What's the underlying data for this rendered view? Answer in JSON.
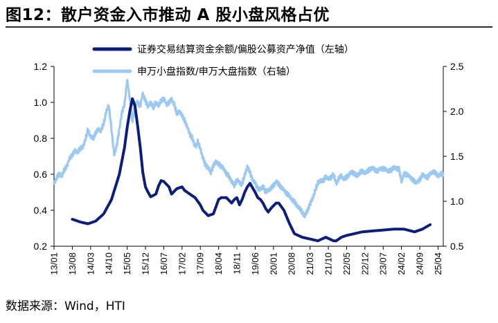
{
  "figure": {
    "title": "图12：散户资金入市推动 A 股小盘风格占优",
    "source": "数据来源：Wind，HTI"
  },
  "chart_data": {
    "type": "line",
    "x_ticks": [
      "13/01",
      "13/08",
      "14/03",
      "14/10",
      "15/05",
      "15/12",
      "16/07",
      "17/02",
      "17/09",
      "18/04",
      "18/11",
      "19/06",
      "20/01",
      "20/08",
      "21/03",
      "21/10",
      "22/05",
      "22/12",
      "23/07",
      "24/02",
      "24/09",
      "25/04"
    ],
    "x_range": [
      "2013-01",
      "2025-06"
    ],
    "left_axis": {
      "ticks": [
        "1.2",
        "1.0",
        "0.8",
        "0.6",
        "0.4",
        "0.2"
      ],
      "ylim": [
        0.2,
        1.2
      ]
    },
    "right_axis": {
      "ticks": [
        "2.5",
        "2.0",
        "1.5",
        "1.0",
        "0.5"
      ],
      "ylim": [
        0.5,
        2.5
      ]
    },
    "legend_position": "top",
    "grid": false,
    "series": [
      {
        "name": "证券交易结算资金余额/偏股公募资产净值（左轴）",
        "axis": "left",
        "color": "#0c1e7a",
        "points": [
          [
            "2013-08",
            0.35
          ],
          [
            "2013-11",
            0.335
          ],
          [
            "2014-02",
            0.325
          ],
          [
            "2014-05",
            0.34
          ],
          [
            "2014-08",
            0.38
          ],
          [
            "2014-11",
            0.46
          ],
          [
            "2015-02",
            0.6
          ],
          [
            "2015-04",
            0.75
          ],
          [
            "2015-05",
            0.86
          ],
          [
            "2015-06",
            0.95
          ],
          [
            "2015-07",
            1.02
          ],
          [
            "2015-08",
            0.98
          ],
          [
            "2015-09",
            0.87
          ],
          [
            "2015-10",
            0.75
          ],
          [
            "2015-11",
            0.61
          ],
          [
            "2015-12",
            0.53
          ],
          [
            "2016-01",
            0.5
          ],
          [
            "2016-02",
            0.475
          ],
          [
            "2016-04",
            0.49
          ],
          [
            "2016-05",
            0.535
          ],
          [
            "2016-06",
            0.565
          ],
          [
            "2016-07",
            0.56
          ],
          [
            "2016-09",
            0.53
          ],
          [
            "2016-10",
            0.49
          ],
          [
            "2016-12",
            0.52
          ],
          [
            "2017-02",
            0.53
          ],
          [
            "2017-03",
            0.51
          ],
          [
            "2017-05",
            0.49
          ],
          [
            "2017-07",
            0.47
          ],
          [
            "2017-09",
            0.43
          ],
          [
            "2017-10",
            0.4
          ],
          [
            "2017-12",
            0.37
          ],
          [
            "2018-02",
            0.38
          ],
          [
            "2018-04",
            0.46
          ],
          [
            "2018-05",
            0.47
          ],
          [
            "2018-07",
            0.47
          ],
          [
            "2018-09",
            0.44
          ],
          [
            "2018-10",
            0.46
          ],
          [
            "2018-11",
            0.47
          ],
          [
            "2018-12",
            0.43
          ],
          [
            "2019-01",
            0.46
          ],
          [
            "2019-02",
            0.5
          ],
          [
            "2019-03",
            0.53
          ],
          [
            "2019-04",
            0.55
          ],
          [
            "2019-06",
            0.5
          ],
          [
            "2019-07",
            0.47
          ],
          [
            "2019-08",
            0.46
          ],
          [
            "2019-09",
            0.44
          ],
          [
            "2019-10",
            0.41
          ],
          [
            "2019-11",
            0.39
          ],
          [
            "2019-12",
            0.41
          ],
          [
            "2020-02",
            0.44
          ],
          [
            "2020-03",
            0.44
          ],
          [
            "2020-05",
            0.4
          ],
          [
            "2020-07",
            0.33
          ],
          [
            "2020-09",
            0.27
          ],
          [
            "2020-12",
            0.25
          ],
          [
            "2021-03",
            0.24
          ],
          [
            "2021-06",
            0.23
          ],
          [
            "2021-09",
            0.25
          ],
          [
            "2021-12",
            0.23
          ],
          [
            "2022-01",
            0.23
          ],
          [
            "2022-03",
            0.25
          ],
          [
            "2022-05",
            0.26
          ],
          [
            "2022-08",
            0.27
          ],
          [
            "2022-11",
            0.28
          ],
          [
            "2023-03",
            0.285
          ],
          [
            "2023-07",
            0.29
          ],
          [
            "2023-11",
            0.295
          ],
          [
            "2024-03",
            0.295
          ],
          [
            "2024-07",
            0.28
          ],
          [
            "2024-10",
            0.295
          ],
          [
            "2025-01",
            0.32
          ]
        ]
      },
      {
        "name": "申万小盘指数/申万大盘指数（右轴）",
        "axis": "right",
        "color": "#9cc9f2",
        "points": [
          [
            "2013-01",
            1.2
          ],
          [
            "2013-02",
            1.26
          ],
          [
            "2013-03",
            1.3
          ],
          [
            "2013-04",
            1.28
          ],
          [
            "2013-05",
            1.35
          ],
          [
            "2013-06",
            1.4
          ],
          [
            "2013-07",
            1.48
          ],
          [
            "2013-08",
            1.52
          ],
          [
            "2013-09",
            1.56
          ],
          [
            "2013-10",
            1.55
          ],
          [
            "2013-11",
            1.58
          ],
          [
            "2013-12",
            1.6
          ],
          [
            "2014-01",
            1.68
          ],
          [
            "2014-02",
            1.8
          ],
          [
            "2014-03",
            1.72
          ],
          [
            "2014-04",
            1.7
          ],
          [
            "2014-05",
            1.77
          ],
          [
            "2014-06",
            1.8
          ],
          [
            "2014-07",
            1.79
          ],
          [
            "2014-08",
            1.86
          ],
          [
            "2014-09",
            2.0
          ],
          [
            "2014-10",
            2.06
          ],
          [
            "2014-11",
            1.8
          ],
          [
            "2014-12",
            1.52
          ],
          [
            "2015-01",
            1.62
          ],
          [
            "2015-02",
            1.8
          ],
          [
            "2015-03",
            1.99
          ],
          [
            "2015-04",
            2.08
          ],
          [
            "2015-05",
            2.35
          ],
          [
            "2015-06",
            2.15
          ],
          [
            "2015-07",
            1.88
          ],
          [
            "2015-08",
            2.07
          ],
          [
            "2015-09",
            2.1
          ],
          [
            "2015-10",
            2.06
          ],
          [
            "2015-11",
            2.2
          ],
          [
            "2015-12",
            2.12
          ],
          [
            "2016-01",
            2.05
          ],
          [
            "2016-02",
            2.1
          ],
          [
            "2016-03",
            2.04
          ],
          [
            "2016-04",
            2.1
          ],
          [
            "2016-05",
            2.06
          ],
          [
            "2016-06",
            2.12
          ],
          [
            "2016-07",
            2.15
          ],
          [
            "2016-08",
            2.08
          ],
          [
            "2016-09",
            2.1
          ],
          [
            "2016-10",
            2.13
          ],
          [
            "2016-11",
            2.08
          ],
          [
            "2016-12",
            1.97
          ],
          [
            "2017-01",
            2.0
          ],
          [
            "2017-02",
            1.95
          ],
          [
            "2017-03",
            1.9
          ],
          [
            "2017-04",
            1.83
          ],
          [
            "2017-05",
            1.75
          ],
          [
            "2017-06",
            1.7
          ],
          [
            "2017-07",
            1.6
          ],
          [
            "2017-08",
            1.66
          ],
          [
            "2017-09",
            1.58
          ],
          [
            "2017-10",
            1.48
          ],
          [
            "2017-11",
            1.4
          ],
          [
            "2017-12",
            1.38
          ],
          [
            "2018-01",
            1.32
          ],
          [
            "2018-02",
            1.4
          ],
          [
            "2018-03",
            1.44
          ],
          [
            "2018-04",
            1.42
          ],
          [
            "2018-05",
            1.38
          ],
          [
            "2018-06",
            1.36
          ],
          [
            "2018-07",
            1.3
          ],
          [
            "2018-08",
            1.28
          ],
          [
            "2018-09",
            1.22
          ],
          [
            "2018-10",
            1.18
          ],
          [
            "2018-11",
            1.24
          ],
          [
            "2018-12",
            1.21
          ],
          [
            "2019-01",
            1.19
          ],
          [
            "2019-02",
            1.29
          ],
          [
            "2019-03",
            1.38
          ],
          [
            "2019-04",
            1.32
          ],
          [
            "2019-05",
            1.24
          ],
          [
            "2019-06",
            1.2
          ],
          [
            "2019-07",
            1.15
          ],
          [
            "2019-08",
            1.13
          ],
          [
            "2019-09",
            1.17
          ],
          [
            "2019-10",
            1.1
          ],
          [
            "2019-11",
            1.12
          ],
          [
            "2019-12",
            1.14
          ],
          [
            "2020-01",
            1.17
          ],
          [
            "2020-02",
            1.22
          ],
          [
            "2020-03",
            1.19
          ],
          [
            "2020-04",
            1.16
          ],
          [
            "2020-05",
            1.13
          ],
          [
            "2020-06",
            1.09
          ],
          [
            "2020-07",
            1.06
          ],
          [
            "2020-08",
            1.02
          ],
          [
            "2020-09",
            0.99
          ],
          [
            "2020-10",
            0.95
          ],
          [
            "2020-11",
            0.92
          ],
          [
            "2020-12",
            0.88
          ],
          [
            "2021-01",
            0.84
          ],
          [
            "2021-02",
            0.9
          ],
          [
            "2021-03",
            0.97
          ],
          [
            "2021-04",
            1.03
          ],
          [
            "2021-05",
            1.12
          ],
          [
            "2021-06",
            1.2
          ],
          [
            "2021-07",
            1.23
          ],
          [
            "2021-08",
            1.22
          ],
          [
            "2021-09",
            1.28
          ],
          [
            "2021-10",
            1.25
          ],
          [
            "2021-11",
            1.27
          ],
          [
            "2021-12",
            1.3
          ],
          [
            "2022-01",
            1.2
          ],
          [
            "2022-02",
            1.25
          ],
          [
            "2022-03",
            1.28
          ],
          [
            "2022-04",
            1.24
          ],
          [
            "2022-05",
            1.27
          ],
          [
            "2022-06",
            1.3
          ],
          [
            "2022-07",
            1.33
          ],
          [
            "2022-08",
            1.31
          ],
          [
            "2022-09",
            1.28
          ],
          [
            "2022-10",
            1.32
          ],
          [
            "2022-11",
            1.33
          ],
          [
            "2022-12",
            1.31
          ],
          [
            "2023-01",
            1.33
          ],
          [
            "2023-02",
            1.36
          ],
          [
            "2023-03",
            1.37
          ],
          [
            "2023-04",
            1.35
          ],
          [
            "2023-05",
            1.34
          ],
          [
            "2023-06",
            1.37
          ],
          [
            "2023-07",
            1.36
          ],
          [
            "2023-08",
            1.35
          ],
          [
            "2023-09",
            1.33
          ],
          [
            "2023-10",
            1.34
          ],
          [
            "2023-11",
            1.38
          ],
          [
            "2023-12",
            1.36
          ],
          [
            "2024-01",
            1.37
          ],
          [
            "2024-02",
            1.22
          ],
          [
            "2024-03",
            1.31
          ],
          [
            "2024-04",
            1.29
          ],
          [
            "2024-05",
            1.28
          ],
          [
            "2024-06",
            1.24
          ],
          [
            "2024-07",
            1.22
          ],
          [
            "2024-08",
            1.21
          ],
          [
            "2024-09",
            1.24
          ],
          [
            "2024-10",
            1.3
          ],
          [
            "2024-11",
            1.28
          ],
          [
            "2024-12",
            1.27
          ],
          [
            "2025-01",
            1.3
          ],
          [
            "2025-02",
            1.33
          ],
          [
            "2025-03",
            1.31
          ],
          [
            "2025-04",
            1.28
          ],
          [
            "2025-05",
            1.3
          ],
          [
            "2025-06",
            1.31
          ]
        ]
      }
    ]
  }
}
